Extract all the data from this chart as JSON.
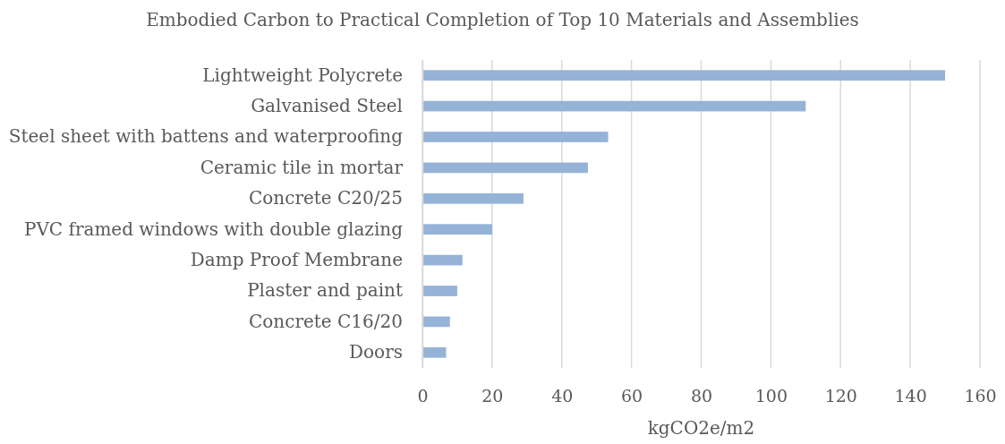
{
  "chart_data": {
    "type": "bar",
    "orientation": "horizontal",
    "title": "Embodied Carbon to Practical Completion of Top 10 Materials and Assemblies",
    "xlabel": "kgCO2e/m2",
    "categories": [
      "Lightweight Polycrete",
      "Galvanised Steel",
      "Steel sheet with battens and waterproofing",
      "Ceramic tile in mortar",
      "Concrete C20/25",
      "PVC framed windows with double glazing",
      "Damp Proof Membrane",
      "Plaster and paint",
      "Concrete C16/20",
      "Doors"
    ],
    "values": [
      150,
      110,
      53.3,
      47.5,
      29,
      20,
      11.5,
      10,
      7.9,
      6.8
    ],
    "color": "#95b3d7",
    "xlim": [
      0,
      160
    ],
    "xticks": [
      0,
      20,
      40,
      60,
      80,
      100,
      120,
      140,
      160
    ],
    "grid": "x"
  }
}
